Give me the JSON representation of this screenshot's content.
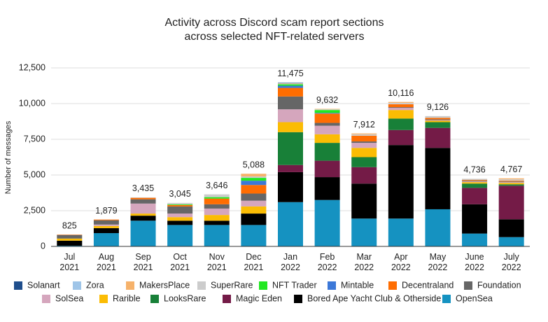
{
  "chart_data": {
    "type": "stacked_bar",
    "title": [
      "Activity across Discord scam report sections",
      "across selected NFT-related servers"
    ],
    "y_label": "Number of messages",
    "categories": [
      "Jul 2021",
      "Aug 2021",
      "Sep 2021",
      "Oct 2021",
      "Nov 2021",
      "Dec 2021",
      "Jan 2022",
      "Feb 2022",
      "Mar 2022",
      "Apr 2022",
      "May 2022",
      "June 2022",
      "July 2022"
    ],
    "ylim": [
      0,
      12500
    ],
    "yticks": [
      0,
      {
        "value": 2500,
        "label": "2,500"
      },
      {
        "value": 5000,
        "label": "5,000"
      },
      {
        "value": 7500,
        "label": "7,500"
      },
      {
        "value": 10000,
        "label": "10,000"
      },
      {
        "value": 12500,
        "label": "12,500"
      }
    ],
    "grid": true,
    "totals": [
      825,
      1879,
      3435,
      3045,
      3646,
      5088,
      11475,
      9632,
      7912,
      10116,
      9126,
      4736,
      4767
    ],
    "total_labels": [
      "825",
      "1,879",
      "3,435",
      "3,045",
      "3,646",
      "5,088",
      "11,475",
      "9,632",
      "7,912",
      "10,116",
      "9,126",
      "4,736",
      "4,767"
    ],
    "legend": "bottom",
    "series": [
      {
        "name": "Solanart",
        "color": "#1f4e8c",
        "values": [
          0,
          0,
          0,
          0,
          0,
          0,
          25,
          0,
          0,
          0,
          0,
          0,
          0
        ]
      },
      {
        "name": "Zora",
        "color": "#9fc5e8",
        "values": [
          0,
          0,
          0,
          0,
          0,
          0,
          25,
          0,
          0,
          0,
          0,
          0,
          0
        ]
      },
      {
        "name": "MakersPlace",
        "color": "#f6b26b",
        "values": [
          0,
          0,
          0,
          0,
          0,
          188,
          25,
          32,
          62,
          66,
          0,
          0,
          67
        ]
      },
      {
        "name": "SuperRare",
        "color": "#cccccc",
        "values": [
          0,
          0,
          35,
          95,
          196,
          100,
          50,
          50,
          100,
          100,
          126,
          86,
          100
        ]
      },
      {
        "name": "NFT Trader",
        "color": "#22e822",
        "values": [
          0,
          0,
          0,
          50,
          100,
          200,
          100,
          200,
          0,
          0,
          0,
          0,
          0
        ]
      },
      {
        "name": "Mintable",
        "color": "#3c78d8",
        "values": [
          0,
          0,
          0,
          0,
          0,
          300,
          150,
          50,
          0,
          0,
          0,
          0,
          0
        ]
      },
      {
        "name": "Decentraland",
        "color": "#ff6d01",
        "values": [
          25,
          49,
          100,
          100,
          400,
          600,
          600,
          650,
          400,
          200,
          100,
          50,
          50
        ]
      },
      {
        "name": "Foundation",
        "color": "#666666",
        "values": [
          250,
          300,
          300,
          500,
          300,
          500,
          900,
          200,
          100,
          50,
          50,
          50,
          50
        ]
      },
      {
        "name": "SolSea",
        "color": "#d5a6bd",
        "values": [
          0,
          100,
          700,
          250,
          450,
          400,
          900,
          600,
          350,
          150,
          50,
          50,
          50
        ]
      },
      {
        "name": "Rarible",
        "color": "#fbbc04",
        "values": [
          150,
          150,
          150,
          250,
          400,
          500,
          700,
          600,
          650,
          600,
          100,
          100,
          100
        ]
      },
      {
        "name": "LooksRare",
        "color": "#188038",
        "values": [
          0,
          0,
          0,
          0,
          0,
          0,
          2300,
          1250,
          700,
          800,
          400,
          300,
          100
        ]
      },
      {
        "name": "Magic Eden",
        "color": "#741b47",
        "values": [
          0,
          0,
          0,
          0,
          0,
          0,
          500,
          1150,
          1150,
          1050,
          1400,
          1150,
          2350
        ]
      },
      {
        "name": "Bored Ape Yacht Club & Otherside",
        "color": "#000000",
        "values": [
          350,
          350,
          350,
          300,
          300,
          800,
          2100,
          1600,
          2450,
          5150,
          4300,
          2050,
          1250
        ]
      },
      {
        "name": "OpenSea",
        "color": "#1592c1",
        "values": [
          50,
          930,
          1800,
          1500,
          1500,
          1500,
          3100,
          3250,
          1950,
          1950,
          2600,
          900,
          650
        ]
      }
    ]
  }
}
